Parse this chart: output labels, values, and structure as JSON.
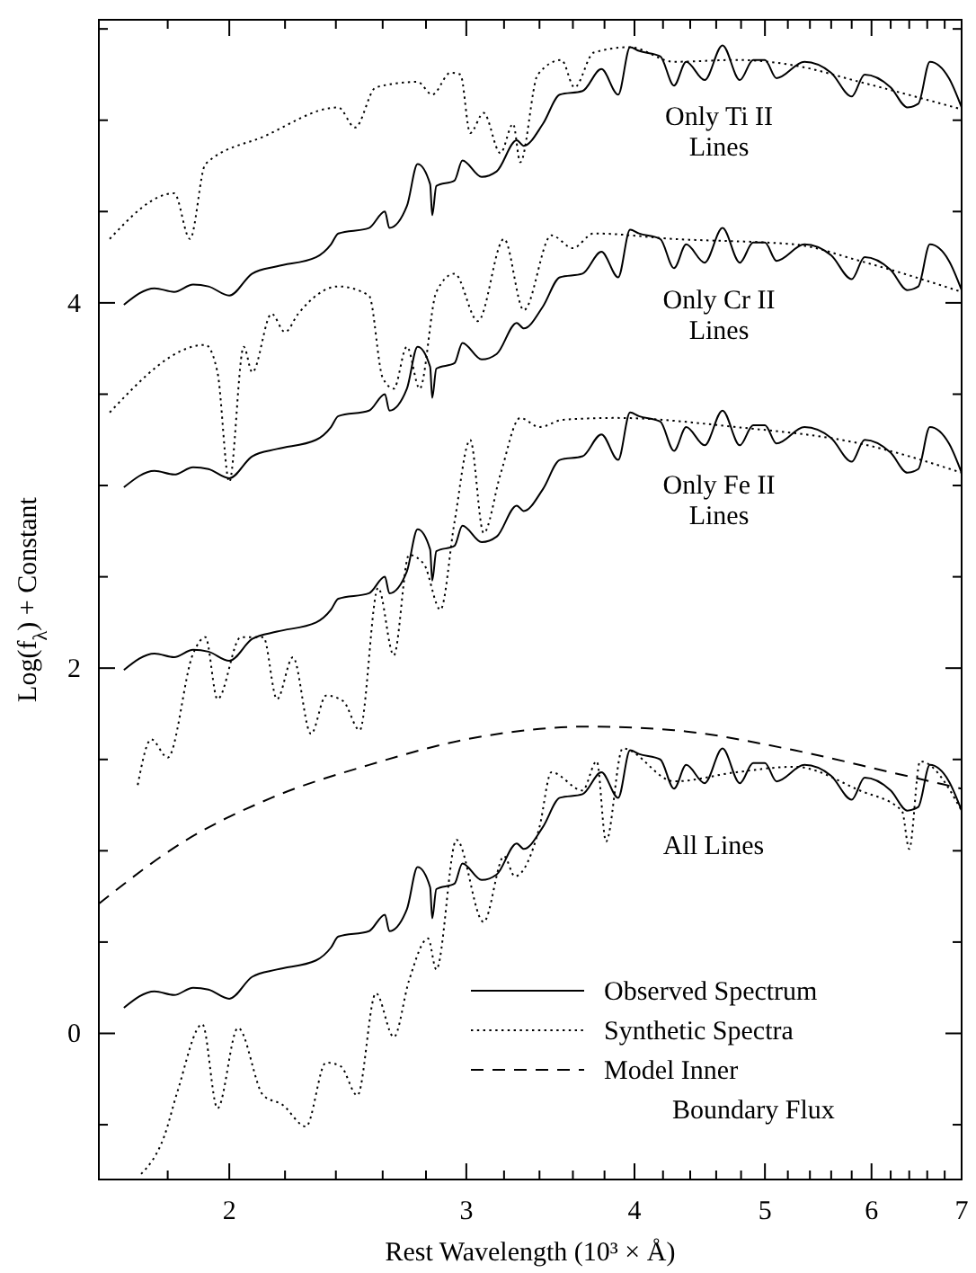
{
  "chart_data": {
    "type": "line",
    "xlabel": "Rest Wavelength (10³ × Å)",
    "ylabel": "Log(f$_{λ}$) + Constant",
    "log": "x",
    "xlim": [
      1.6,
      7.0
    ],
    "xticks": [
      {
        "value": 1.6,
        "label": null
      },
      {
        "value": 1.8,
        "label": null
      },
      2,
      {
        "value": 2.2,
        "label": null
      },
      {
        "value": 2.4,
        "label": null
      },
      {
        "value": 2.6,
        "label": null
      },
      {
        "value": 2.8,
        "label": null
      },
      3,
      {
        "value": 3.2,
        "label": null
      },
      {
        "value": 3.4,
        "label": null
      },
      {
        "value": 3.6,
        "label": null
      },
      {
        "value": 3.8,
        "label": null
      },
      4,
      {
        "value": 4.2,
        "label": null
      },
      {
        "value": 4.4,
        "label": null
      },
      {
        "value": 4.6,
        "label": null
      },
      {
        "value": 4.8,
        "label": null
      },
      5,
      {
        "value": 5.2,
        "label": null
      },
      {
        "value": 5.4,
        "label": null
      },
      {
        "value": 5.6,
        "label": null
      },
      {
        "value": 5.8,
        "label": null
      },
      6,
      {
        "value": 6.2,
        "label": null
      },
      {
        "value": 6.4,
        "label": null
      },
      {
        "value": 6.6,
        "label": null
      },
      {
        "value": 6.8,
        "label": null
      },
      7
    ],
    "ylim": [
      -0.8,
      5.55
    ],
    "yticks": [
      {
        "value": -0.5,
        "label": null
      },
      0,
      {
        "value": 0.5,
        "label": null
      },
      {
        "value": 1,
        "label": null
      },
      {
        "value": 1.5,
        "label": null
      },
      2,
      {
        "value": 2.5,
        "label": null
      },
      {
        "value": 3,
        "label": null
      },
      {
        "value": 3.5,
        "label": null
      },
      4,
      {
        "value": 4.5,
        "label": null
      },
      {
        "value": 5,
        "label": null
      },
      {
        "value": 5.5,
        "label": null
      }
    ],
    "grid": false,
    "legend": "bottom right",
    "marker": "none",
    "annotations": [
      "Only Ti II Lines",
      "Only Cr II Lines",
      "Only Fe II Lines",
      "All Lines"
    ],
    "series": [
      {
        "name": "Observed Spectrum",
        "color": "#000000",
        "line_style": "solid",
        "x": [
          1.67,
          1.76,
          1.82,
          1.88,
          1.93,
          2.0,
          2.08,
          2.17,
          2.32,
          2.38,
          2.41,
          2.54,
          2.61,
          2.63,
          2.71,
          2.76,
          2.82,
          2.83,
          2.85,
          2.94,
          2.98,
          3.08,
          3.16,
          3.27,
          3.31,
          3.42,
          3.52,
          3.66,
          3.78,
          3.89,
          3.97,
          4.03,
          4.18,
          4.28,
          4.37,
          4.51,
          4.65,
          4.79,
          4.9,
          5.0,
          5.1,
          5.35,
          5.6,
          5.8,
          5.93,
          6.2,
          6.38,
          6.5,
          6.63,
          6.85,
          7.0
        ],
        "values": [
          3.99,
          4.08,
          4.06,
          4.1,
          4.09,
          4.04,
          4.16,
          4.2,
          4.25,
          4.32,
          4.38,
          4.41,
          4.5,
          4.41,
          4.53,
          4.76,
          4.65,
          4.48,
          4.64,
          4.67,
          4.78,
          4.69,
          4.72,
          4.89,
          4.86,
          4.98,
          5.14,
          5.16,
          5.28,
          5.14,
          5.4,
          5.38,
          5.35,
          5.19,
          5.32,
          5.22,
          5.41,
          5.22,
          5.33,
          5.33,
          5.23,
          5.32,
          5.26,
          5.13,
          5.25,
          5.18,
          5.07,
          5.09,
          5.32,
          5.23,
          5.07
        ]
      },
      {
        "color": "#000000",
        "line_style": "solid",
        "x": [
          1.67,
          1.76,
          1.82,
          1.88,
          1.93,
          2.0,
          2.08,
          2.17,
          2.32,
          2.38,
          2.41,
          2.54,
          2.61,
          2.63,
          2.71,
          2.76,
          2.82,
          2.83,
          2.85,
          2.94,
          2.98,
          3.08,
          3.16,
          3.27,
          3.31,
          3.42,
          3.52,
          3.66,
          3.78,
          3.89,
          3.97,
          4.03,
          4.18,
          4.28,
          4.37,
          4.51,
          4.65,
          4.79,
          4.9,
          5.0,
          5.1,
          5.35,
          5.6,
          5.8,
          5.93,
          6.2,
          6.38,
          6.5,
          6.63,
          6.85,
          7.0
        ],
        "values": [
          2.99,
          3.08,
          3.06,
          3.1,
          3.09,
          3.04,
          3.16,
          3.2,
          3.25,
          3.32,
          3.38,
          3.41,
          3.5,
          3.41,
          3.53,
          3.76,
          3.65,
          3.48,
          3.64,
          3.67,
          3.78,
          3.69,
          3.72,
          3.89,
          3.86,
          3.98,
          4.14,
          4.16,
          4.28,
          4.14,
          4.4,
          4.38,
          4.35,
          4.19,
          4.32,
          4.22,
          4.41,
          4.22,
          4.33,
          4.33,
          4.23,
          4.32,
          4.26,
          4.13,
          4.25,
          4.18,
          4.07,
          4.09,
          4.32,
          4.23,
          4.07
        ]
      },
      {
        "color": "#000000",
        "line_style": "solid",
        "x": [
          1.67,
          1.76,
          1.82,
          1.88,
          1.93,
          2.0,
          2.08,
          2.17,
          2.32,
          2.38,
          2.41,
          2.54,
          2.61,
          2.63,
          2.71,
          2.76,
          2.82,
          2.83,
          2.85,
          2.94,
          2.98,
          3.08,
          3.16,
          3.27,
          3.31,
          3.42,
          3.52,
          3.66,
          3.78,
          3.89,
          3.97,
          4.03,
          4.18,
          4.28,
          4.37,
          4.51,
          4.65,
          4.79,
          4.9,
          5.0,
          5.1,
          5.35,
          5.6,
          5.8,
          5.93,
          6.2,
          6.38,
          6.5,
          6.63,
          6.85,
          7.0
        ],
        "values": [
          1.99,
          2.08,
          2.06,
          2.1,
          2.09,
          2.04,
          2.16,
          2.2,
          2.25,
          2.32,
          2.38,
          2.41,
          2.5,
          2.41,
          2.53,
          2.76,
          2.65,
          2.48,
          2.64,
          2.67,
          2.78,
          2.69,
          2.72,
          2.89,
          2.86,
          2.98,
          3.14,
          3.16,
          3.28,
          3.14,
          3.4,
          3.38,
          3.35,
          3.19,
          3.32,
          3.22,
          3.41,
          3.22,
          3.33,
          3.33,
          3.23,
          3.32,
          3.26,
          3.13,
          3.25,
          3.18,
          3.07,
          3.09,
          3.32,
          3.23,
          3.07
        ]
      },
      {
        "color": "#000000",
        "line_style": "solid",
        "x": [
          1.67,
          1.76,
          1.82,
          1.88,
          1.93,
          2.0,
          2.08,
          2.17,
          2.32,
          2.38,
          2.41,
          2.54,
          2.61,
          2.63,
          2.71,
          2.76,
          2.82,
          2.83,
          2.85,
          2.94,
          2.98,
          3.08,
          3.16,
          3.27,
          3.31,
          3.42,
          3.52,
          3.66,
          3.78,
          3.89,
          3.97,
          4.03,
          4.18,
          4.28,
          4.37,
          4.51,
          4.65,
          4.79,
          4.9,
          5.0,
          5.1,
          5.35,
          5.6,
          5.8,
          5.93,
          6.2,
          6.38,
          6.5,
          6.63,
          6.85,
          7.0
        ],
        "values": [
          0.14,
          0.23,
          0.21,
          0.25,
          0.24,
          0.19,
          0.31,
          0.35,
          0.4,
          0.47,
          0.53,
          0.56,
          0.65,
          0.56,
          0.68,
          0.91,
          0.8,
          0.63,
          0.79,
          0.82,
          0.93,
          0.84,
          0.87,
          1.04,
          1.01,
          1.13,
          1.29,
          1.31,
          1.43,
          1.29,
          1.55,
          1.53,
          1.5,
          1.34,
          1.47,
          1.37,
          1.56,
          1.37,
          1.48,
          1.48,
          1.38,
          1.47,
          1.41,
          1.28,
          1.4,
          1.33,
          1.22,
          1.24,
          1.47,
          1.38,
          1.22
        ]
      },
      {
        "name": "Synthetic Spectra",
        "color": "#000000",
        "line_style": "dotted",
        "x": [
          1.63,
          1.82,
          1.87,
          1.92,
          2.12,
          2.41,
          2.48,
          2.57,
          2.76,
          2.83,
          2.92,
          2.97,
          3.02,
          3.09,
          3.18,
          3.25,
          3.29,
          3.39,
          3.53,
          3.61,
          3.73,
          3.97,
          4.28,
          4.76,
          5.26,
          5.88,
          7.0
        ],
        "values": [
          4.35,
          4.6,
          4.35,
          4.76,
          4.91,
          5.07,
          4.96,
          5.18,
          5.21,
          5.14,
          5.26,
          5.25,
          4.93,
          5.04,
          4.82,
          4.98,
          4.77,
          5.25,
          5.33,
          5.18,
          5.37,
          5.4,
          5.32,
          5.33,
          5.3,
          5.21,
          5.06
        ]
      },
      {
        "color": "#000000",
        "line_style": "dotted",
        "x": [
          1.63,
          1.92,
          1.96,
          2.0,
          2.05,
          2.08,
          2.15,
          2.2,
          2.25,
          2.41,
          2.54,
          2.6,
          2.65,
          2.71,
          2.77,
          2.85,
          2.94,
          3.06,
          3.2,
          3.31,
          3.47,
          3.6,
          3.73,
          4.28,
          5.26,
          5.88,
          7.0
        ],
        "values": [
          3.4,
          3.77,
          3.62,
          3.02,
          3.76,
          3.62,
          3.94,
          3.84,
          3.94,
          4.09,
          4.04,
          3.59,
          3.53,
          3.76,
          3.53,
          4.06,
          4.16,
          3.9,
          4.35,
          3.96,
          4.37,
          4.3,
          4.38,
          4.35,
          4.32,
          4.23,
          4.06
        ]
      },
      {
        "color": "#000000",
        "line_style": "dotted",
        "x": [
          1.71,
          1.75,
          1.8,
          1.88,
          1.92,
          1.96,
          2.04,
          2.12,
          2.17,
          2.23,
          2.3,
          2.36,
          2.43,
          2.5,
          2.58,
          2.65,
          2.72,
          2.79,
          2.87,
          2.94,
          3.02,
          3.09,
          3.18,
          3.29,
          3.4,
          3.54,
          3.87,
          4.76,
          5.88,
          7.0
        ],
        "values": [
          1.36,
          1.61,
          1.51,
          2.08,
          2.17,
          1.83,
          2.17,
          2.17,
          1.83,
          2.06,
          1.64,
          1.85,
          1.82,
          1.66,
          2.44,
          2.07,
          2.62,
          2.57,
          2.32,
          2.8,
          3.25,
          2.74,
          3.06,
          3.37,
          3.32,
          3.36,
          3.37,
          3.32,
          3.23,
          3.07
        ]
      },
      {
        "color": "#000000",
        "line_style": "dotted",
        "x": [
          1.72,
          1.79,
          1.83,
          1.91,
          1.96,
          2.03,
          2.12,
          2.19,
          2.28,
          2.36,
          2.42,
          2.49,
          2.57,
          2.65,
          2.72,
          2.81,
          2.85,
          2.95,
          3.09,
          3.2,
          3.26,
          3.4,
          3.47,
          3.66,
          3.75,
          3.81,
          3.92,
          4.28,
          4.76,
          5.26,
          5.88,
          6.32,
          6.4,
          6.52,
          7.0
        ],
        "values": [
          -0.77,
          -0.56,
          -0.32,
          0.05,
          -0.41,
          0.03,
          -0.34,
          -0.39,
          -0.51,
          -0.16,
          -0.18,
          -0.34,
          0.22,
          -0.02,
          0.29,
          0.52,
          0.35,
          1.06,
          0.61,
          0.97,
          0.86,
          1.13,
          1.43,
          1.33,
          1.49,
          1.05,
          1.56,
          1.38,
          1.43,
          1.46,
          1.33,
          1.22,
          1.01,
          1.49,
          1.22
        ]
      },
      {
        "name": "Model Inner Boundary Flux",
        "color": "#000000",
        "line_style": "dashed",
        "x": [
          1.6,
          1.85,
          2.15,
          2.54,
          3.0,
          3.7,
          4.28,
          5.26,
          6.2,
          7.0
        ],
        "values": [
          0.71,
          1.05,
          1.29,
          1.47,
          1.61,
          1.68,
          1.66,
          1.55,
          1.43,
          1.34
        ]
      }
    ]
  }
}
